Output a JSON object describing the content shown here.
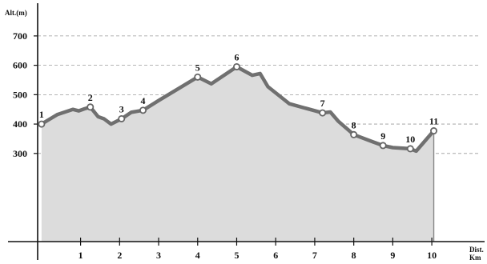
{
  "chart_data": {
    "type": "area",
    "ylabel": "Alt.(m)",
    "xlabel_line1": "Dist.",
    "xlabel_line2": "Km",
    "xlim": [
      -0.1,
      11.25
    ],
    "ylim": [
      0,
      795
    ],
    "y_ticks": [
      300,
      400,
      500,
      600,
      700
    ],
    "x_ticks": [
      1,
      2,
      3,
      4,
      5,
      6,
      7,
      8,
      9,
      10
    ],
    "grid": true,
    "profile": [
      {
        "x": 0.0,
        "y": 400
      },
      {
        "x": 0.1,
        "y": 408
      },
      {
        "x": 0.4,
        "y": 432
      },
      {
        "x": 0.8,
        "y": 450
      },
      {
        "x": 0.95,
        "y": 445
      },
      {
        "x": 1.1,
        "y": 452
      },
      {
        "x": 1.25,
        "y": 458
      },
      {
        "x": 1.45,
        "y": 425
      },
      {
        "x": 1.6,
        "y": 418
      },
      {
        "x": 1.78,
        "y": 400
      },
      {
        "x": 2.05,
        "y": 418
      },
      {
        "x": 2.3,
        "y": 440
      },
      {
        "x": 2.6,
        "y": 447
      },
      {
        "x": 3.0,
        "y": 480
      },
      {
        "x": 4.0,
        "y": 560
      },
      {
        "x": 4.35,
        "y": 537
      },
      {
        "x": 5.0,
        "y": 595
      },
      {
        "x": 5.4,
        "y": 566
      },
      {
        "x": 5.6,
        "y": 572
      },
      {
        "x": 5.8,
        "y": 527
      },
      {
        "x": 6.35,
        "y": 469
      },
      {
        "x": 7.2,
        "y": 438
      },
      {
        "x": 7.4,
        "y": 441
      },
      {
        "x": 7.6,
        "y": 410
      },
      {
        "x": 8.0,
        "y": 364
      },
      {
        "x": 8.5,
        "y": 339
      },
      {
        "x": 8.75,
        "y": 327
      },
      {
        "x": 9.0,
        "y": 320
      },
      {
        "x": 9.45,
        "y": 316
      },
      {
        "x": 9.6,
        "y": 308
      },
      {
        "x": 10.05,
        "y": 377
      }
    ],
    "waypoints": [
      {
        "label": "1",
        "x": 0.0,
        "y": 400
      },
      {
        "label": "2",
        "x": 1.25,
        "y": 458
      },
      {
        "label": "3",
        "x": 2.05,
        "y": 418
      },
      {
        "label": "4",
        "x": 2.6,
        "y": 447
      },
      {
        "label": "5",
        "x": 4.0,
        "y": 560
      },
      {
        "label": "6",
        "x": 5.0,
        "y": 595
      },
      {
        "label": "7",
        "x": 7.2,
        "y": 438
      },
      {
        "label": "8",
        "x": 8.0,
        "y": 364
      },
      {
        "label": "9",
        "x": 8.75,
        "y": 327
      },
      {
        "label": "10",
        "x": 9.45,
        "y": 316
      },
      {
        "label": "11",
        "x": 10.05,
        "y": 377
      }
    ],
    "colors": {
      "line": "#707070",
      "fill": "#dcdcdc",
      "marker_fill": "#ffffff"
    }
  }
}
